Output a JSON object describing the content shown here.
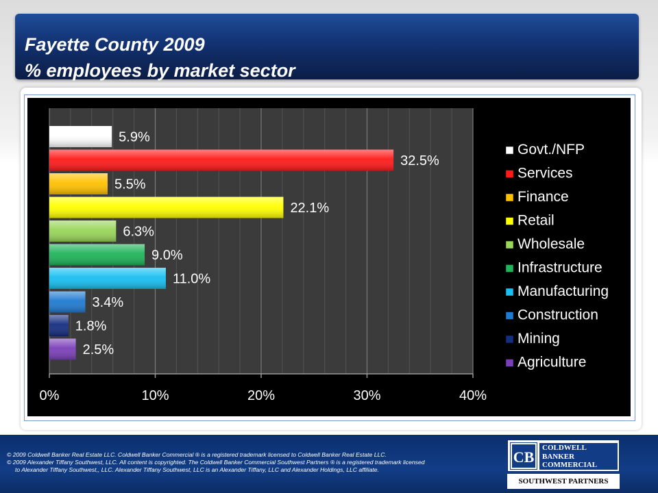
{
  "title": {
    "line1": "Fayette County 2009",
    "line2": "% employees by market sector"
  },
  "chart_data": {
    "type": "bar",
    "orientation": "horizontal",
    "categories": [
      "Govt./NFP",
      "Services",
      "Finance",
      "Retail",
      "Wholesale",
      "Infrastructure",
      "Manufacturing",
      "Construction",
      "Mining",
      "Agriculture"
    ],
    "values": [
      5.9,
      32.5,
      5.5,
      22.1,
      6.3,
      9.0,
      11.0,
      3.4,
      1.8,
      2.5
    ],
    "value_labels": [
      "5.9%",
      "32.5%",
      "5.5%",
      "22.1%",
      "6.3%",
      "9.0%",
      "11.0%",
      "3.4%",
      "1.8%",
      "2.5%"
    ],
    "colors": [
      "#ffffff",
      "#ff1a1a",
      "#ffc000",
      "#ffff00",
      "#99d659",
      "#1fb35a",
      "#17bff2",
      "#1f7ad1",
      "#142e80",
      "#7a3fb8"
    ],
    "xlim": [
      0,
      40
    ],
    "xticks": [
      "0%",
      "10%",
      "20%",
      "30%",
      "40%"
    ],
    "grid": true,
    "legend_position": "right",
    "background": "#000000",
    "plot_background": "#3b3b3b"
  },
  "footer": {
    "copyright_line1": "© 2009 Coldwell Banker Real Estate LLC. Coldwell Banker Commercial ® is a registered trademark licensed to Coldwell Banker Real Estate LLC.",
    "copyright_line2": "© 2009 Alexander Tiffany Southwest, LLC. All content is copyrighted. The Coldwell Banker Commercial Southwest Partners ® is a registered trademark licensed",
    "copyright_line3": "to Alexander Tiffany Southwest,, LLC.  Alexander Tiffany Southwest, LLC is an Alexander Tiffany, LLC and Alexander Holdings, LLC affiliate.",
    "logo": {
      "word1": "COLDWELL",
      "word2": "BANKER",
      "word3": "COMMERCIAL",
      "subtitle": "SOUTHWEST PARTNERS",
      "icon": "cb-monogram-icon"
    }
  }
}
